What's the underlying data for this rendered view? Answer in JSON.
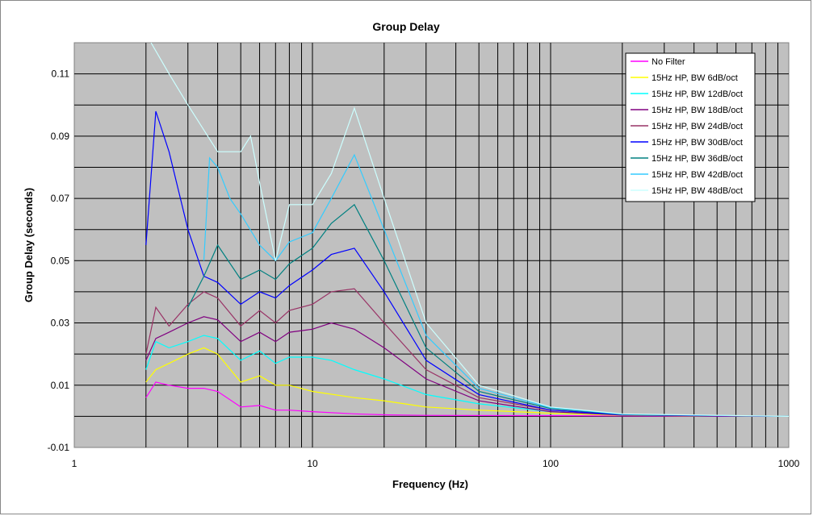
{
  "chart_data": {
    "type": "line",
    "title": "Group Delay",
    "xlabel": "Frequency (Hz)",
    "ylabel": "Group Delay (seconds)",
    "x_scale": "log",
    "xlim": [
      1,
      1000
    ],
    "ylim": [
      -0.01,
      0.12
    ],
    "x_ticks": [
      "1",
      "10",
      "100",
      "1000"
    ],
    "y_ticks": [
      "-0.01",
      "0.01",
      "0.03",
      "0.05",
      "0.07",
      "0.09",
      "0.11"
    ],
    "y_tick_values": [
      -0.01,
      0.01,
      0.03,
      0.05,
      0.07,
      0.09,
      0.11
    ],
    "grid": true,
    "plot_background": "#c0c0c0",
    "legend_position": "top-right",
    "series": [
      {
        "name": "No Filter",
        "color": "#ff00ff",
        "points": [
          [
            2,
            0.006
          ],
          [
            2.2,
            0.011
          ],
          [
            2.5,
            0.01
          ],
          [
            3,
            0.009
          ],
          [
            3.5,
            0.009
          ],
          [
            4,
            0.008
          ],
          [
            5,
            0.003
          ],
          [
            6,
            0.0035
          ],
          [
            7,
            0.002
          ],
          [
            8,
            0.002
          ],
          [
            10,
            0.0015
          ],
          [
            15,
            0.0008
          ],
          [
            20,
            0.0005
          ],
          [
            30,
            0.0003
          ],
          [
            100,
            0.0002
          ],
          [
            1000,
            0
          ]
        ]
      },
      {
        "name": "15Hz HP, BW 6dB/oct",
        "color": "#ffff00",
        "points": [
          [
            2,
            0.011
          ],
          [
            2.2,
            0.015
          ],
          [
            2.5,
            0.017
          ],
          [
            3,
            0.02
          ],
          [
            3.5,
            0.022
          ],
          [
            4,
            0.02
          ],
          [
            5,
            0.011
          ],
          [
            6,
            0.013
          ],
          [
            7,
            0.01
          ],
          [
            8,
            0.01
          ],
          [
            10,
            0.008
          ],
          [
            15,
            0.006
          ],
          [
            20,
            0.005
          ],
          [
            30,
            0.003
          ],
          [
            50,
            0.002
          ],
          [
            100,
            0.001
          ],
          [
            200,
            0.0003
          ],
          [
            1000,
            0
          ]
        ]
      },
      {
        "name": "15Hz HP, BW 12dB/oct",
        "color": "#00ffff",
        "points": [
          [
            2,
            0.015
          ],
          [
            2.2,
            0.024
          ],
          [
            2.5,
            0.022
          ],
          [
            3,
            0.024
          ],
          [
            3.5,
            0.026
          ],
          [
            4,
            0.025
          ],
          [
            5,
            0.018
          ],
          [
            6,
            0.021
          ],
          [
            7,
            0.017
          ],
          [
            8,
            0.019
          ],
          [
            10,
            0.019
          ],
          [
            12,
            0.018
          ],
          [
            15,
            0.015
          ],
          [
            20,
            0.012
          ],
          [
            30,
            0.007
          ],
          [
            50,
            0.004
          ],
          [
            100,
            0.0015
          ],
          [
            200,
            0.0004
          ],
          [
            1000,
            0
          ]
        ]
      },
      {
        "name": "15Hz HP, BW 18dB/oct",
        "color": "#800080",
        "points": [
          [
            2,
            0.018
          ],
          [
            2.2,
            0.025
          ],
          [
            2.5,
            0.027
          ],
          [
            3,
            0.03
          ],
          [
            3.5,
            0.032
          ],
          [
            4,
            0.031
          ],
          [
            5,
            0.024
          ],
          [
            6,
            0.027
          ],
          [
            7,
            0.024
          ],
          [
            8,
            0.027
          ],
          [
            10,
            0.028
          ],
          [
            12,
            0.03
          ],
          [
            15,
            0.028
          ],
          [
            20,
            0.022
          ],
          [
            30,
            0.012
          ],
          [
            50,
            0.005
          ],
          [
            100,
            0.0015
          ],
          [
            200,
            0.0004
          ],
          [
            1000,
            0
          ]
        ]
      },
      {
        "name": "15Hz HP, BW 24dB/oct",
        "color": "#993366",
        "points": [
          [
            2,
            0.02
          ],
          [
            2.2,
            0.035
          ],
          [
            2.5,
            0.029
          ],
          [
            3,
            0.036
          ],
          [
            3.5,
            0.04
          ],
          [
            4,
            0.038
          ],
          [
            5,
            0.029
          ],
          [
            6,
            0.034
          ],
          [
            7,
            0.03
          ],
          [
            8,
            0.034
          ],
          [
            10,
            0.036
          ],
          [
            12,
            0.04
          ],
          [
            15,
            0.041
          ],
          [
            20,
            0.03
          ],
          [
            30,
            0.015
          ],
          [
            50,
            0.006
          ],
          [
            100,
            0.002
          ],
          [
            200,
            0.0005
          ],
          [
            1000,
            0
          ]
        ]
      },
      {
        "name": "15Hz HP, BW 30dB/oct",
        "color": "#0000ff",
        "points": [
          [
            2,
            0.055
          ],
          [
            2.2,
            0.098
          ],
          [
            2.5,
            0.085
          ],
          [
            3,
            0.06
          ],
          [
            3.5,
            0.045
          ],
          [
            4,
            0.043
          ],
          [
            5,
            0.036
          ],
          [
            6,
            0.04
          ],
          [
            7,
            0.038
          ],
          [
            8,
            0.042
          ],
          [
            10,
            0.047
          ],
          [
            12,
            0.052
          ],
          [
            15,
            0.054
          ],
          [
            20,
            0.04
          ],
          [
            30,
            0.018
          ],
          [
            50,
            0.007
          ],
          [
            100,
            0.002
          ],
          [
            200,
            0.0005
          ],
          [
            1000,
            0
          ]
        ]
      },
      {
        "name": "15Hz HP, BW 36dB/oct",
        "color": "#008080",
        "points": [
          [
            3,
            0.035
          ],
          [
            3.5,
            0.045
          ],
          [
            4,
            0.055
          ],
          [
            5,
            0.044
          ],
          [
            6,
            0.047
          ],
          [
            7,
            0.044
          ],
          [
            8,
            0.049
          ],
          [
            10,
            0.054
          ],
          [
            12,
            0.062
          ],
          [
            15,
            0.068
          ],
          [
            20,
            0.05
          ],
          [
            30,
            0.022
          ],
          [
            50,
            0.008
          ],
          [
            100,
            0.0025
          ],
          [
            200,
            0.0006
          ],
          [
            1000,
            0
          ]
        ]
      },
      {
        "name": "15Hz HP, BW 42dB/oct",
        "color": "#33ccff",
        "points": [
          [
            3.5,
            0.05
          ],
          [
            3.7,
            0.083
          ],
          [
            4,
            0.08
          ],
          [
            4.5,
            0.07
          ],
          [
            5,
            0.065
          ],
          [
            6,
            0.055
          ],
          [
            7,
            0.05
          ],
          [
            8,
            0.056
          ],
          [
            10,
            0.059
          ],
          [
            12,
            0.07
          ],
          [
            15,
            0.084
          ],
          [
            20,
            0.06
          ],
          [
            30,
            0.026
          ],
          [
            50,
            0.009
          ],
          [
            100,
            0.0028
          ],
          [
            200,
            0.0007
          ],
          [
            1000,
            0
          ]
        ]
      },
      {
        "name": "15Hz HP, BW 48dB/oct",
        "color": "#ccffff",
        "points": [
          [
            2.1,
            0.12
          ],
          [
            2.5,
            0.11
          ],
          [
            3,
            0.1
          ],
          [
            4,
            0.085
          ],
          [
            5,
            0.085
          ],
          [
            5.5,
            0.09
          ],
          [
            6,
            0.075
          ],
          [
            7,
            0.05
          ],
          [
            8,
            0.068
          ],
          [
            10,
            0.068
          ],
          [
            12,
            0.078
          ],
          [
            15,
            0.099
          ],
          [
            20,
            0.07
          ],
          [
            30,
            0.03
          ],
          [
            50,
            0.01
          ],
          [
            100,
            0.003
          ],
          [
            200,
            0.0008
          ],
          [
            1000,
            0
          ]
        ]
      }
    ]
  }
}
